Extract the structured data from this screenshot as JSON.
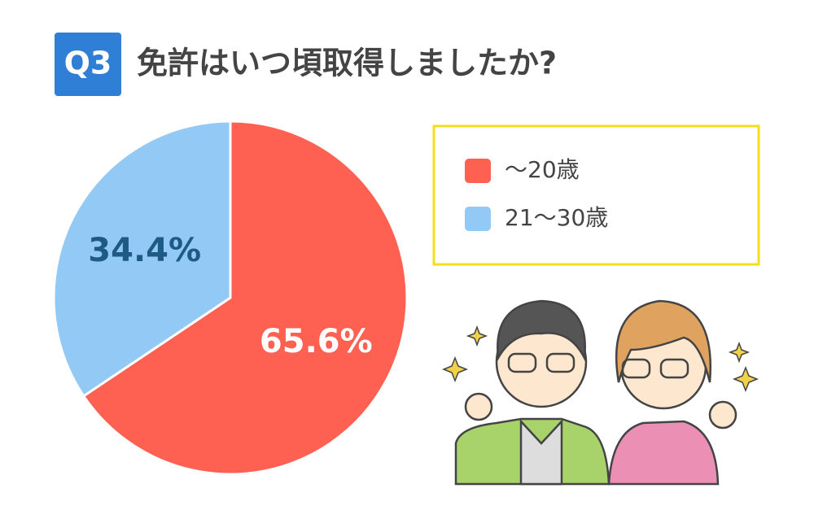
{
  "chart_data": {
    "type": "pie",
    "badge": "Q3",
    "title": "免許はいつ頃取得しましたか?",
    "categories": [
      "～20歳",
      "21～30歳"
    ],
    "values": [
      65.6,
      34.4
    ],
    "value_labels": [
      "65.6%",
      "34.4%"
    ],
    "colors": [
      "#fe6152",
      "#93c9f5"
    ],
    "label_colors": [
      "#ffffff",
      "#1d5b85"
    ]
  }
}
